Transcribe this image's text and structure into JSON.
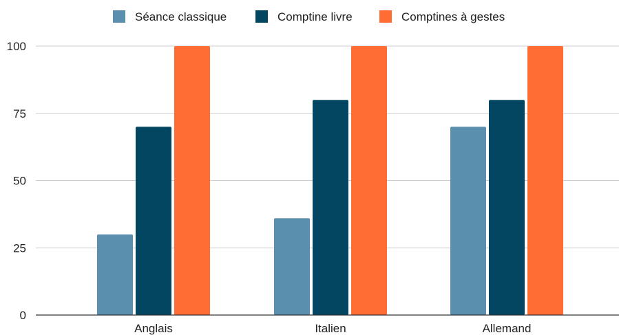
{
  "chart_data": {
    "type": "bar",
    "title": "",
    "xlabel": "",
    "ylabel": "",
    "categories": [
      "Anglais",
      "Italien",
      "Allemand"
    ],
    "series": [
      {
        "name": "Séance classique",
        "color": "#5b8fae",
        "values": [
          30,
          36,
          70
        ]
      },
      {
        "name": "Comptine livre",
        "color": "#034661",
        "values": [
          70,
          80,
          80
        ]
      },
      {
        "name": "Comptines à gestes",
        "color": "#ff6d34",
        "values": [
          100,
          100,
          100
        ]
      }
    ],
    "ylim": [
      0,
      100
    ],
    "yticks": [
      0,
      25,
      50,
      75,
      100
    ],
    "grid": true,
    "legend_position": "top-center"
  }
}
